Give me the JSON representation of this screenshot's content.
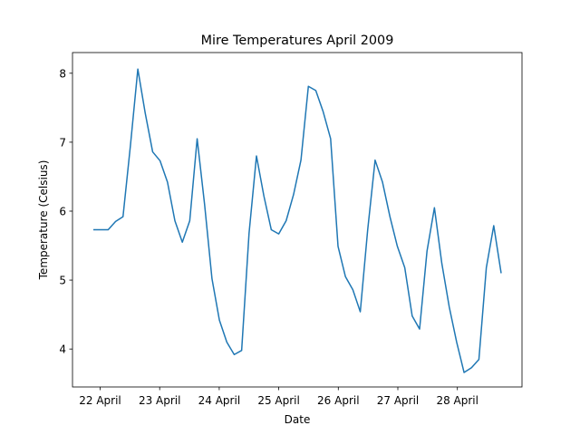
{
  "chart_data": {
    "type": "line",
    "title": "Mire Temperatures April 2009",
    "xlabel": "Date",
    "ylabel": "Temperature (Celsius)",
    "x_ticks": [
      "22 April",
      "23 April",
      "24 April",
      "25 April",
      "26 April",
      "27 April",
      "28 April"
    ],
    "y_ticks": [
      "4",
      "5",
      "6",
      "7",
      "8"
    ],
    "ylim": [
      3.45,
      8.3
    ],
    "grid": false,
    "series_color": "#1f77b4",
    "series": [
      {
        "values": [
          5.73,
          5.73,
          5.73,
          5.85,
          5.92,
          6.95,
          8.06,
          7.42,
          6.86,
          6.73,
          6.42,
          5.86,
          5.55,
          5.86,
          7.05,
          6.1,
          5.02,
          4.42,
          4.1,
          3.92,
          3.98,
          5.68,
          6.8,
          6.22,
          5.73,
          5.67,
          5.86,
          6.24,
          6.74,
          7.81,
          7.75,
          7.44,
          7.05,
          5.49,
          5.05,
          4.86,
          4.54,
          5.73,
          6.74,
          6.42,
          5.92,
          5.49,
          5.18,
          4.48,
          4.29,
          5.42,
          6.05,
          5.24,
          4.61,
          4.1,
          3.66,
          3.73,
          3.85,
          5.18,
          5.79,
          5.1
        ]
      }
    ]
  }
}
